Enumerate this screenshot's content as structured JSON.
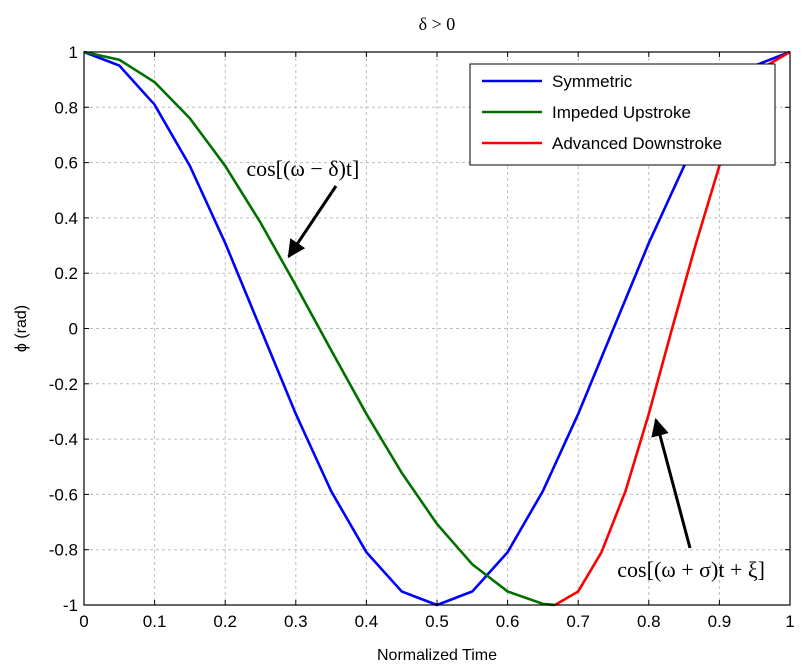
{
  "chart_data": {
    "type": "line",
    "title": "δ > 0",
    "xlabel": "Normalized Time",
    "ylabel": "ϕ (rad)",
    "xlim": [
      0,
      1
    ],
    "ylim": [
      -1,
      1
    ],
    "grid": true,
    "legend_position": "top-right",
    "x_ticks": [
      "0",
      "0.1",
      "0.2",
      "0.3",
      "0.4",
      "0.5",
      "0.6",
      "0.7",
      "0.8",
      "0.9",
      "1"
    ],
    "y_ticks": [
      "1",
      "0.8",
      "0.6",
      "0.4",
      "0.2",
      "0",
      "-0.2",
      "-0.4",
      "-0.6",
      "-0.8",
      "-1"
    ],
    "series": [
      {
        "name": "Symmetric",
        "color": "#0000ff",
        "x": [
          0,
          0.05,
          0.1,
          0.15,
          0.2,
          0.25,
          0.3,
          0.35,
          0.4,
          0.45,
          0.5,
          0.55,
          0.6,
          0.65,
          0.7,
          0.75,
          0.8,
          0.85,
          0.9,
          0.95,
          1.0
        ],
        "y": [
          1,
          0.951,
          0.809,
          0.588,
          0.309,
          0,
          -0.309,
          -0.588,
          -0.809,
          -0.951,
          -1,
          -0.951,
          -0.809,
          -0.588,
          -0.309,
          0,
          0.309,
          0.588,
          0.809,
          0.951,
          1
        ]
      },
      {
        "name": "Impeded Upstroke",
        "color": "#007000",
        "x": [
          0,
          0.05,
          0.1,
          0.15,
          0.2,
          0.25,
          0.3,
          0.35,
          0.4,
          0.45,
          0.5,
          0.55,
          0.6,
          0.65,
          0.667
        ],
        "y": [
          1,
          0.972,
          0.891,
          0.76,
          0.588,
          0.383,
          0.156,
          -0.078,
          -0.309,
          -0.522,
          -0.707,
          -0.853,
          -0.951,
          -0.996,
          -1
        ]
      },
      {
        "name": "Advanced Downstroke",
        "color": "#ff0000",
        "x": [
          0.667,
          0.7,
          0.733,
          0.767,
          0.8,
          0.833,
          0.867,
          0.9,
          0.933,
          0.967,
          1.0
        ],
        "y": [
          -1,
          -0.951,
          -0.809,
          -0.588,
          -0.309,
          0,
          0.309,
          0.588,
          0.809,
          0.951,
          1
        ]
      }
    ],
    "annotations": [
      {
        "text": "cos[(ω − δ)t]",
        "x": 0.31,
        "y": 0.58,
        "arrow_to": [
          0.29,
          0.26
        ]
      },
      {
        "text": "cos[(ω + σ)t + ξ]",
        "x": 0.86,
        "y": -0.87,
        "arrow_to": [
          0.81,
          -0.33
        ]
      }
    ]
  }
}
